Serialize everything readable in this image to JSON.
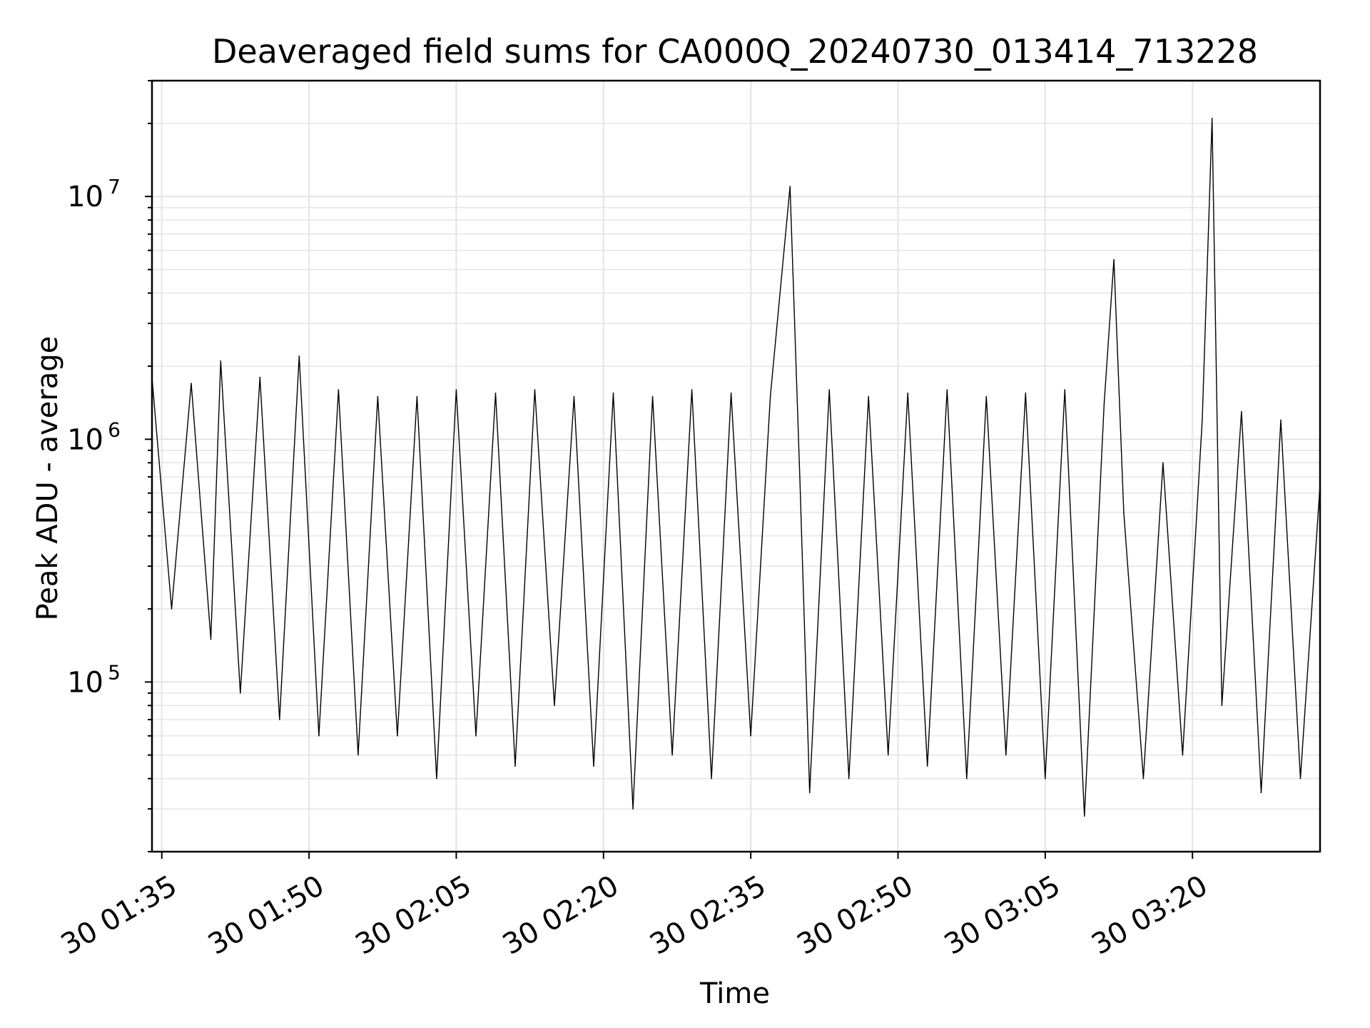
{
  "chart_data": {
    "type": "line",
    "title": "Deaveraged field sums for CA000Q_20240730_013414_713228",
    "xlabel": "Time",
    "ylabel": "Peak ADU - average",
    "yscale": "log",
    "grid": true,
    "legend": "none",
    "colors": {
      "line": "#000000",
      "grid": "#e6e6e6",
      "axes": "#000000"
    },
    "x_range": [
      "30 01:34",
      "30 03:33"
    ],
    "x_ticks": [
      "30 01:35",
      "30 01:50",
      "30 02:05",
      "30 02:20",
      "30 02:35",
      "30 02:50",
      "30 03:05",
      "30 03:20"
    ],
    "y_ticks": [
      {
        "mantissa": "10",
        "exp": "5",
        "value": 100000
      },
      {
        "mantissa": "10",
        "exp": "6",
        "value": 1000000
      },
      {
        "mantissa": "10",
        "exp": "7",
        "value": 10000000
      }
    ],
    "ylim": [
      20000,
      30000000
    ],
    "series": [
      {
        "x": [
          "01:34",
          "01:36",
          "01:38",
          "01:40",
          "01:41",
          "01:43",
          "01:45",
          "01:47",
          "01:49",
          "01:51",
          "01:53",
          "01:55",
          "01:57",
          "01:59",
          "02:01",
          "02:03",
          "02:05",
          "02:07",
          "02:09",
          "02:11",
          "02:13",
          "02:15",
          "02:17",
          "02:19",
          "02:21",
          "02:23",
          "02:25",
          "02:27",
          "02:29",
          "02:31",
          "02:33",
          "02:35",
          "02:37",
          "02:39",
          "02:40",
          "02:41",
          "02:43",
          "02:45",
          "02:47",
          "02:49",
          "02:51",
          "02:53",
          "02:55",
          "02:57",
          "02:59",
          "03:01",
          "03:03",
          "03:05",
          "03:07",
          "03:09",
          "03:11",
          "03:12",
          "03:13",
          "03:15",
          "03:17",
          "03:19",
          "03:21",
          "03:22",
          "03:23",
          "03:25",
          "03:27",
          "03:29",
          "03:31",
          "03:33"
        ],
        "y": [
          1800000,
          200000,
          1700000,
          150000,
          2100000,
          90000,
          1800000,
          70000,
          2200000,
          60000,
          1600000,
          50000,
          1500000,
          60000,
          1500000,
          40000,
          1600000,
          60000,
          1550000,
          45000,
          1600000,
          80000,
          1500000,
          45000,
          1550000,
          30000,
          1500000,
          50000,
          1600000,
          40000,
          1550000,
          60000,
          1500000,
          11000000,
          700000,
          35000,
          1600000,
          40000,
          1500000,
          50000,
          1550000,
          45000,
          1600000,
          40000,
          1500000,
          50000,
          1550000,
          40000,
          1600000,
          28000,
          1400000,
          5500000,
          500000,
          40000,
          800000,
          50000,
          1200000,
          21000000,
          80000,
          1300000,
          35000,
          1200000,
          40000,
          650000
        ]
      }
    ]
  }
}
